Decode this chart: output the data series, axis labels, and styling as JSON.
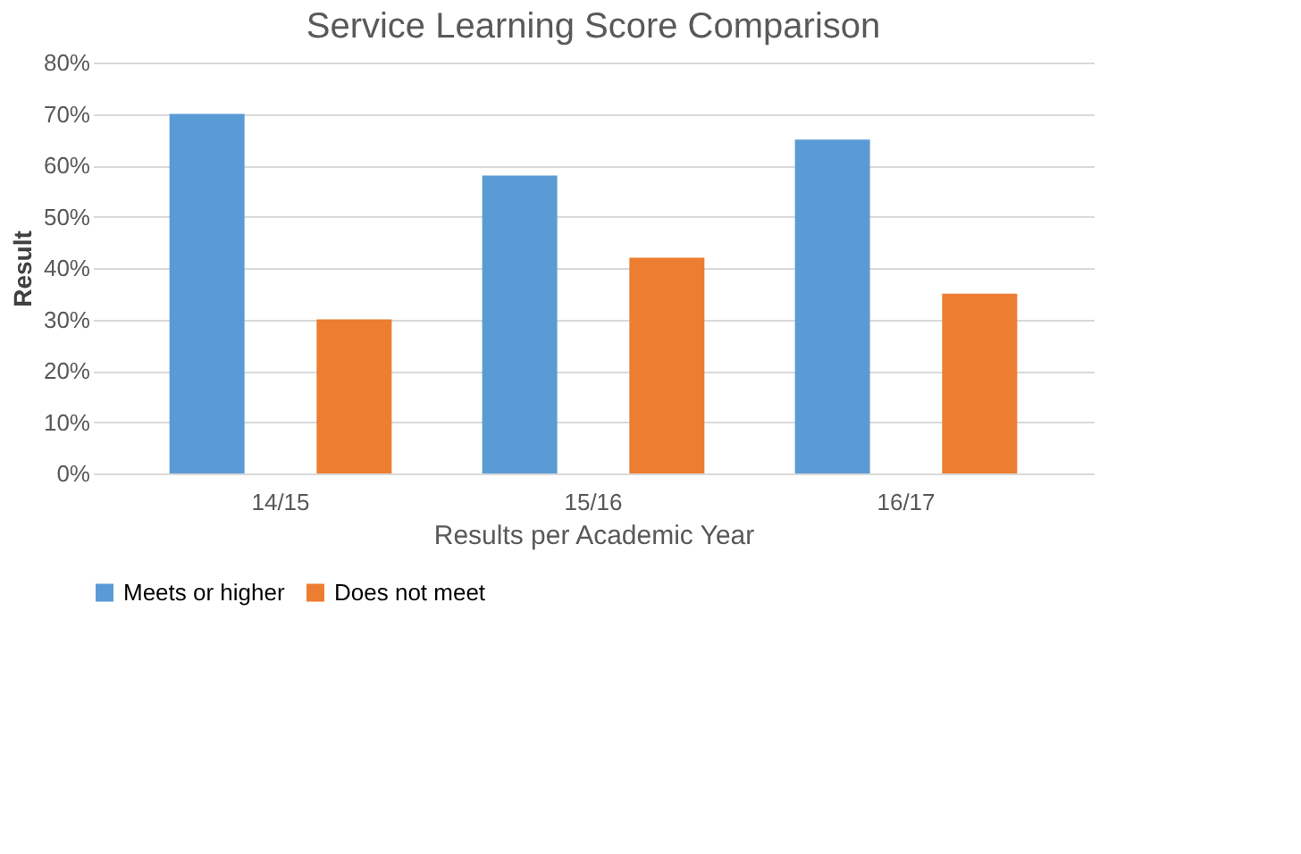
{
  "chart_data": {
    "type": "bar",
    "title": "Service Learning Score Comparison",
    "xlabel": "Results per Academic Year",
    "ylabel": "Result",
    "categories": [
      "14/15",
      "15/16",
      "16/17"
    ],
    "series": [
      {
        "name": "Meets or higher",
        "color": "#5b9bd5",
        "values": [
          70,
          58,
          65
        ]
      },
      {
        "name": "Does not meet",
        "color": "#ed7d31",
        "values": [
          30,
          42,
          35
        ]
      }
    ],
    "ylim": [
      0,
      80
    ],
    "yticks": [
      {
        "value": 0,
        "label": "0%"
      },
      {
        "value": 10,
        "label": "10%"
      },
      {
        "value": 20,
        "label": "20%"
      },
      {
        "value": 30,
        "label": "30%"
      },
      {
        "value": 40,
        "label": "40%"
      },
      {
        "value": 50,
        "label": "50%"
      },
      {
        "value": 60,
        "label": "60%"
      },
      {
        "value": 70,
        "label": "70%"
      },
      {
        "value": 80,
        "label": "80%"
      }
    ],
    "grid": "y",
    "legend": "bottom"
  }
}
